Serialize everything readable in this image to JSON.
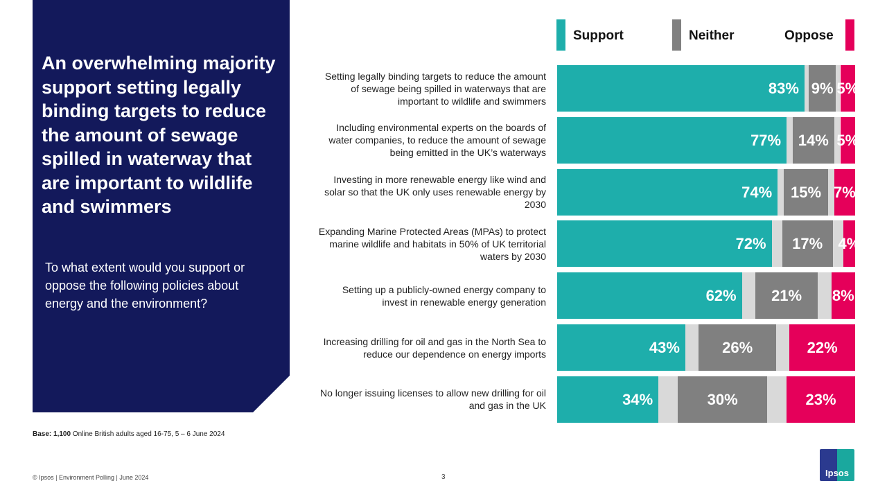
{
  "title": "An overwhelming majority support setting legally binding targets to reduce the amount of sewage spilled in waterway that are important to wildlife and swimmers",
  "question": "To what extent would you support or oppose the following policies about energy and the environment?",
  "base_label": "Base: 1,100",
  "base_text": " Online British adults aged 16-75, 5 – 6 June 2024",
  "footer": "© Ipsos | Environment  Polling | June 2024",
  "page_number": "3",
  "logo_text": "Ipsos",
  "chart_data": {
    "type": "bar",
    "orientation": "horizontal-stacked-100",
    "colors": {
      "Support": "#1eaeab",
      "Neither": "#808080",
      "Oppose": "#e5005a",
      "remainder": "#d9d9d9"
    },
    "legend_placement": "top",
    "categories": [
      "Setting legally binding targets to reduce the amount of sewage being spilled in waterways that are important to wildlife and swimmers",
      "Including environmental experts on the boards of water companies, to reduce the amount of sewage being emitted in the UK’s waterways",
      "Investing in more renewable energy like wind and solar so that the UK only uses renewable energy by 2030",
      "Expanding Marine Protected Areas (MPAs) to protect marine wildlife and habitats in 50% of UK territorial waters by 2030",
      "Setting up a publicly-owned energy company to invest in renewable energy generation",
      "Increasing drilling for oil and gas in the North Sea to reduce our dependence on energy imports",
      "No longer issuing licenses to allow new drilling for oil and gas in the UK"
    ],
    "series": [
      {
        "name": "Support",
        "values": [
          83,
          77,
          74,
          72,
          62,
          43,
          34
        ]
      },
      {
        "name": "Neither",
        "values": [
          9,
          14,
          15,
          17,
          21,
          26,
          30
        ]
      },
      {
        "name": "Oppose",
        "values": [
          5,
          5,
          7,
          4,
          8,
          22,
          23
        ]
      }
    ],
    "xlim": [
      0,
      100
    ]
  }
}
